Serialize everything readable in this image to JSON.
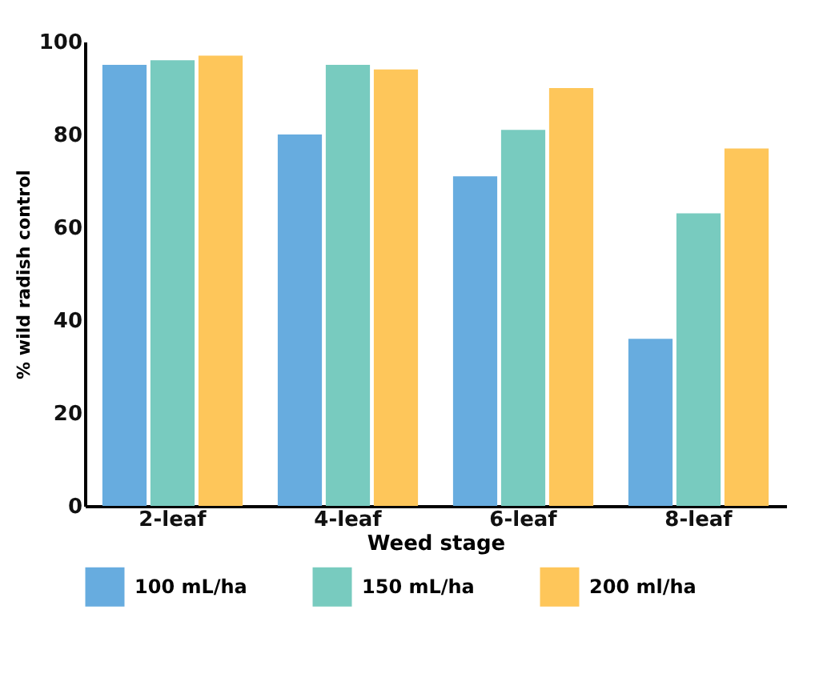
{
  "chart_data": {
    "type": "bar",
    "xlabel": "Weed stage",
    "ylabel": "% wild radish control",
    "categories": [
      "2-leaf",
      "4-leaf",
      "6-leaf",
      "8-leaf"
    ],
    "series": [
      {
        "name": "100 mL/ha",
        "color": "#67acdf",
        "values": [
          95,
          80,
          71,
          36
        ]
      },
      {
        "name": "150 mL/ha",
        "color": "#78cbbf",
        "values": [
          96,
          95,
          81,
          63
        ]
      },
      {
        "name": "200 ml/ha",
        "color": "#fec65a",
        "values": [
          97,
          94,
          90,
          77
        ]
      }
    ],
    "ylim": [
      0,
      100
    ],
    "yticks": [
      0,
      20,
      40,
      60,
      80,
      100
    ],
    "grid": false,
    "legend": "bottom"
  }
}
